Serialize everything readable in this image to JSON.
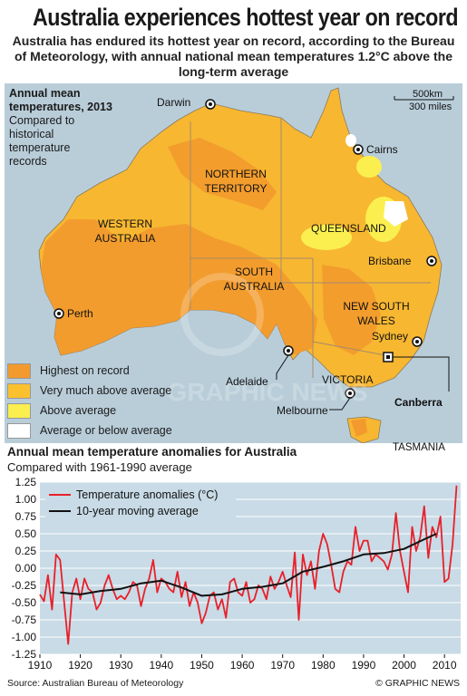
{
  "header": {
    "title": "Australia experiences hottest year on record",
    "subtitle": "Australia has endured its hottest year on record, according to the Bureau of Meteorology, with annual national mean temperatures 1.2°C above the long-term average"
  },
  "map": {
    "title_bold": "Annual mean temperatures, 2013",
    "title_sub": "Compared to historical temperature records",
    "scale_km": "500km",
    "scale_miles": "300 miles",
    "states": {
      "wa": "WESTERN AUSTRALIA",
      "nt": "NORTHERN TERRITORY",
      "sa": "SOUTH AUSTRALIA",
      "qld": "QUEENSLAND",
      "nsw": "NEW SOUTH WALES",
      "vic": "VICTORIA",
      "tas": "TASMANIA"
    },
    "cities": {
      "darwin": "Darwin",
      "cairns": "Cairns",
      "brisbane": "Brisbane",
      "sydney": "Sydney",
      "canberra": "Canberra",
      "melbourne": "Melbourne",
      "adelaide": "Adelaide",
      "perth": "Perth"
    },
    "legend": [
      {
        "label": "Highest on record",
        "color": "#f29a2e"
      },
      {
        "label": "Very much above average",
        "color": "#fbc02d"
      },
      {
        "label": "Above average",
        "color": "#fbef4f"
      },
      {
        "label": "Average or below average",
        "color": "#ffffff"
      }
    ],
    "watermark": "GRAPHIC NEWS"
  },
  "chart_data": {
    "type": "line",
    "title": "Annual mean temperature anomalies for Australia",
    "subtitle": "Compared with 1961-1990 average",
    "ylim": [
      -1.25,
      1.25
    ],
    "xlim": [
      1910,
      2013
    ],
    "yticks": [
      "1.25",
      "1.00",
      "0.75",
      "0.50",
      "0.25",
      "0.00",
      "-0.25",
      "-0.50",
      "-0.75",
      "-1.00",
      "-1.25"
    ],
    "xticks": [
      "1910",
      "1920",
      "1930",
      "1940",
      "1950",
      "1960",
      "1970",
      "1980",
      "1990",
      "2000",
      "2010"
    ],
    "grid": true,
    "legend_position": "top-left",
    "series": [
      {
        "name": "Temperature anomalies (°C)",
        "color": "#e8202a",
        "x": [
          1910,
          1911,
          1912,
          1913,
          1914,
          1915,
          1916,
          1917,
          1918,
          1919,
          1920,
          1921,
          1922,
          1923,
          1924,
          1925,
          1926,
          1927,
          1928,
          1929,
          1930,
          1931,
          1932,
          1933,
          1934,
          1935,
          1936,
          1937,
          1938,
          1939,
          1940,
          1941,
          1942,
          1943,
          1944,
          1945,
          1946,
          1947,
          1948,
          1949,
          1950,
          1951,
          1952,
          1953,
          1954,
          1955,
          1956,
          1957,
          1958,
          1959,
          1960,
          1961,
          1962,
          1963,
          1964,
          1965,
          1966,
          1967,
          1968,
          1969,
          1970,
          1971,
          1972,
          1973,
          1974,
          1975,
          1976,
          1977,
          1978,
          1979,
          1980,
          1981,
          1982,
          1983,
          1984,
          1985,
          1986,
          1987,
          1988,
          1989,
          1990,
          1991,
          1992,
          1993,
          1994,
          1995,
          1996,
          1997,
          1998,
          1999,
          2000,
          2001,
          2002,
          2003,
          2004,
          2005,
          2006,
          2007,
          2008,
          2009,
          2010,
          2011,
          2012,
          2013
        ],
        "y": [
          -0.38,
          -0.48,
          -0.1,
          -0.6,
          0.2,
          0.12,
          -0.5,
          -1.1,
          -0.35,
          -0.15,
          -0.45,
          -0.15,
          -0.3,
          -0.35,
          -0.6,
          -0.5,
          -0.25,
          -0.1,
          -0.3,
          -0.45,
          -0.4,
          -0.45,
          -0.35,
          -0.2,
          -0.25,
          -0.55,
          -0.3,
          -0.15,
          0.12,
          -0.35,
          -0.15,
          -0.2,
          -0.3,
          -0.35,
          -0.05,
          -0.42,
          -0.2,
          -0.55,
          -0.35,
          -0.5,
          -0.8,
          -0.65,
          -0.4,
          -0.35,
          -0.6,
          -0.45,
          -0.72,
          -0.2,
          -0.15,
          -0.35,
          -0.4,
          -0.2,
          -0.5,
          -0.45,
          -0.25,
          -0.3,
          -0.45,
          -0.12,
          -0.3,
          -0.2,
          -0.05,
          -0.25,
          -0.42,
          0.23,
          -0.75,
          0.2,
          -0.1,
          0.1,
          -0.3,
          0.25,
          0.5,
          0.35,
          0.05,
          -0.3,
          -0.35,
          -0.05,
          0.1,
          0.05,
          0.6,
          0.25,
          0.4,
          0.4,
          0.1,
          0.2,
          0.15,
          0.1,
          -0.02,
          0.2,
          0.8,
          0.25,
          -0.05,
          -0.35,
          0.6,
          0.25,
          0.45,
          0.9,
          0.15,
          0.6,
          0.45,
          0.75,
          -0.2,
          -0.15,
          0.35,
          1.2
        ]
      },
      {
        "name": "10-year moving average",
        "color": "#111111",
        "x": [
          1915,
          1920,
          1925,
          1930,
          1935,
          1940,
          1945,
          1950,
          1955,
          1960,
          1965,
          1970,
          1975,
          1980,
          1985,
          1990,
          1995,
          2000,
          2005,
          2008
        ],
        "y": [
          -0.35,
          -0.38,
          -0.33,
          -0.3,
          -0.22,
          -0.18,
          -0.28,
          -0.4,
          -0.38,
          -0.3,
          -0.27,
          -0.22,
          -0.05,
          0.02,
          0.1,
          0.2,
          0.22,
          0.28,
          0.42,
          0.5
        ]
      }
    ]
  },
  "footer": {
    "source": "Source: Australian Bureau of Meteorology",
    "copyright": "© GRAPHIC NEWS"
  }
}
